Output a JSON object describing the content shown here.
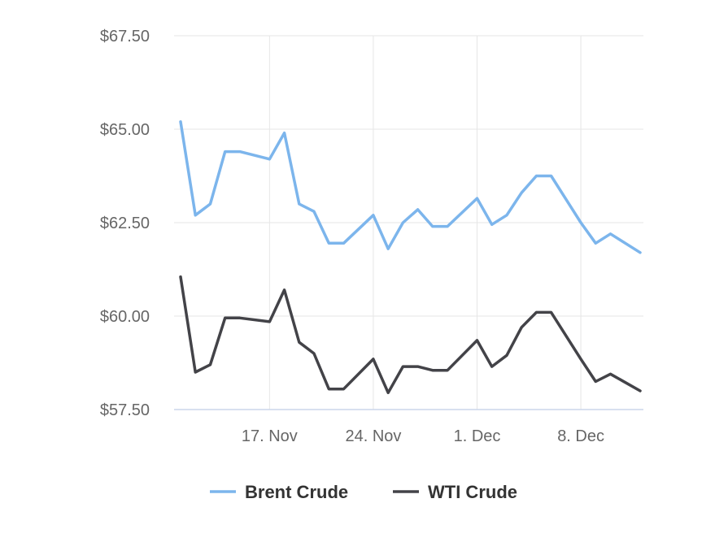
{
  "chart_data": {
    "type": "line",
    "title": "",
    "xlabel": "",
    "ylabel": "",
    "ylim": [
      57.5,
      67.5
    ],
    "yticks": [
      "$57.50",
      "$60.00",
      "$62.50",
      "$65.00",
      "$67.50"
    ],
    "yticks_values": [
      57.5,
      60.0,
      62.5,
      65.0,
      67.5
    ],
    "xticks": [
      "17. Nov",
      "24. Nov",
      "1. Dec",
      "8. Dec"
    ],
    "xticks_dates": [
      "2017-11-17",
      "2017-11-24",
      "2017-12-01",
      "2017-12-08"
    ],
    "xlim": [
      "2017-11-11",
      "2017-12-12"
    ],
    "grid": true,
    "legend_position": "bottom",
    "x": [
      "2017-11-11",
      "2017-11-12",
      "2017-11-13",
      "2017-11-14",
      "2017-11-15",
      "2017-11-17",
      "2017-11-18",
      "2017-11-19",
      "2017-11-20",
      "2017-11-21",
      "2017-11-22",
      "2017-11-24",
      "2017-11-25",
      "2017-11-26",
      "2017-11-27",
      "2017-11-28",
      "2017-11-29",
      "2017-12-01",
      "2017-12-02",
      "2017-12-03",
      "2017-12-04",
      "2017-12-05",
      "2017-12-06",
      "2017-12-08",
      "2017-12-09",
      "2017-12-10",
      "2017-12-12"
    ],
    "series": [
      {
        "name": "Brent Crude",
        "color": "#7cb5ec",
        "values": [
          65.2,
          62.7,
          63.0,
          64.4,
          64.4,
          64.2,
          64.9,
          63.0,
          62.8,
          61.95,
          61.95,
          62.7,
          61.8,
          62.5,
          62.85,
          62.4,
          62.4,
          63.15,
          62.45,
          62.7,
          63.3,
          63.75,
          63.75,
          62.5,
          61.95,
          62.2,
          61.7
        ]
      },
      {
        "name": "WTI Crude",
        "color": "#434348",
        "values": [
          61.05,
          58.5,
          58.7,
          59.95,
          59.95,
          59.85,
          60.7,
          59.3,
          59.0,
          58.05,
          58.05,
          58.85,
          57.95,
          58.65,
          58.65,
          58.55,
          58.55,
          59.35,
          58.65,
          58.95,
          59.7,
          60.1,
          60.1,
          58.85,
          58.25,
          58.45,
          58.0
        ]
      }
    ]
  }
}
